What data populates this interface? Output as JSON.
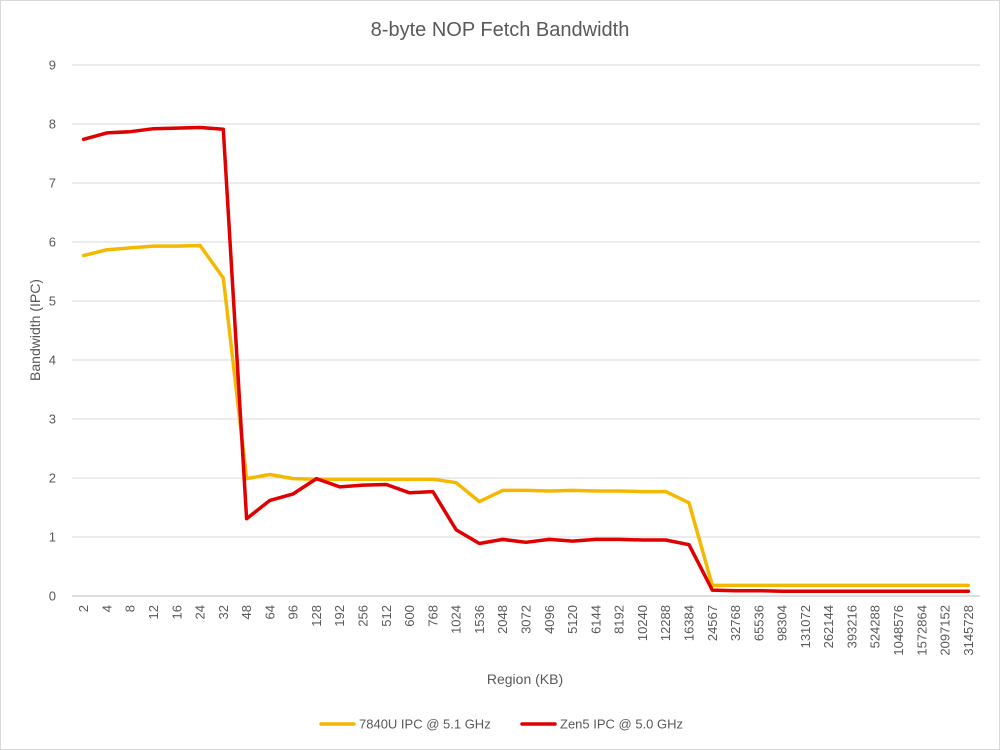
{
  "chart_data": {
    "type": "line",
    "title": "8-byte NOP Fetch Bandwidth",
    "xlabel": "Region (KB)",
    "ylabel": "Bandwidth (IPC)",
    "ylim": [
      0,
      9
    ],
    "yticks": [
      "0",
      "1",
      "2",
      "3",
      "4",
      "5",
      "6",
      "7",
      "8",
      "9"
    ],
    "grid": true,
    "legend_position": "bottom",
    "categories": [
      "2",
      "4",
      "8",
      "12",
      "16",
      "24",
      "32",
      "48",
      "64",
      "96",
      "128",
      "192",
      "256",
      "512",
      "600",
      "768",
      "1024",
      "1536",
      "2048",
      "3072",
      "4096",
      "5120",
      "6144",
      "8192",
      "10240",
      "12288",
      "16384",
      "24567",
      "32768",
      "65536",
      "98304",
      "131072",
      "262144",
      "393216",
      "524288",
      "1048576",
      "1572864",
      "2097152",
      "3145728"
    ],
    "series": [
      {
        "name": "7840U IPC @ 5.1 GHz",
        "color": "#f5b800",
        "values": [
          5.77,
          5.87,
          5.9,
          5.93,
          5.93,
          5.94,
          5.39,
          1.99,
          2.06,
          1.99,
          1.98,
          1.98,
          1.98,
          1.98,
          1.98,
          1.98,
          1.92,
          1.6,
          1.79,
          1.79,
          1.78,
          1.79,
          1.78,
          1.78,
          1.77,
          1.77,
          1.58,
          0.18,
          0.18,
          0.18,
          0.18,
          0.18,
          0.18,
          0.18,
          0.18,
          0.18,
          0.18,
          0.18,
          0.18
        ]
      },
      {
        "name": "Zen5 IPC @ 5.0 GHz",
        "color": "#e00000",
        "values": [
          7.74,
          7.85,
          7.87,
          7.92,
          7.93,
          7.94,
          7.91,
          1.31,
          1.62,
          1.73,
          1.99,
          1.85,
          1.88,
          1.89,
          1.75,
          1.77,
          1.12,
          0.89,
          0.96,
          0.91,
          0.96,
          0.93,
          0.96,
          0.96,
          0.95,
          0.95,
          0.87,
          0.1,
          0.09,
          0.09,
          0.08,
          0.08,
          0.08,
          0.08,
          0.08,
          0.08,
          0.08,
          0.08,
          0.08
        ]
      }
    ]
  }
}
